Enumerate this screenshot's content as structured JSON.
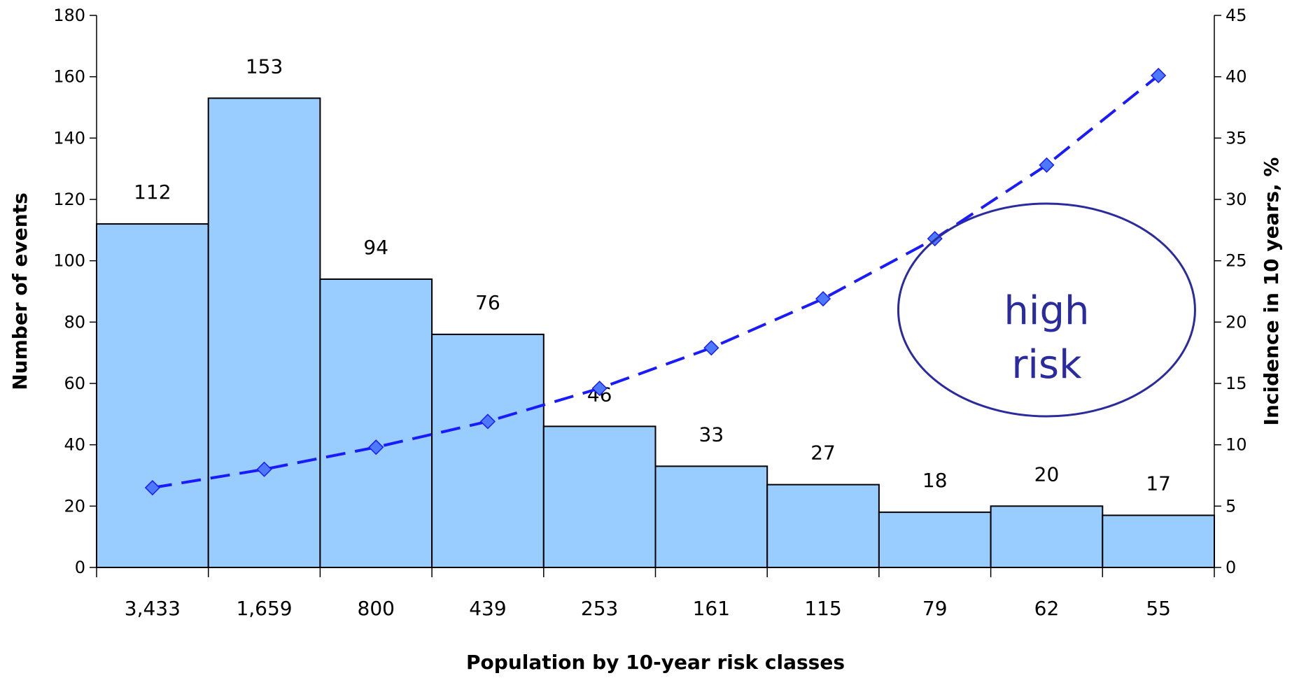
{
  "chart_data": {
    "type": "bar",
    "categories": [
      "3,433",
      "1,659",
      "800",
      "439",
      "253",
      "161",
      "115",
      "79",
      "62",
      "55"
    ],
    "series": [
      {
        "type": "bar",
        "axis": "left",
        "values": [
          112,
          153,
          94,
          76,
          46,
          33,
          27,
          18,
          20,
          17
        ],
        "data_labels": [
          "112",
          "153",
          "94",
          "76",
          "46",
          "33",
          "27",
          "18",
          "20",
          "17"
        ]
      },
      {
        "type": "line",
        "axis": "right",
        "style": "dashed",
        "marker": "diamond",
        "values": [
          6.5,
          8.0,
          9.8,
          11.9,
          14.6,
          17.9,
          21.9,
          26.8,
          32.8,
          40.1
        ]
      }
    ],
    "xlabel": "Population by 10-year risk classes",
    "ylabel": "Number of events",
    "y2label": "Incidence in 10 years, %",
    "ylim": [
      0,
      180
    ],
    "y2lim": [
      0,
      45
    ],
    "yticks": [
      0,
      20,
      40,
      60,
      80,
      100,
      120,
      140,
      160,
      180
    ],
    "y2ticks": [
      0,
      5,
      10,
      15,
      20,
      25,
      30,
      35,
      40,
      45
    ],
    "grid": false,
    "annotation": {
      "lines": [
        "high",
        "risk"
      ],
      "shape": "ellipse",
      "near_category": "62"
    },
    "colors": {
      "bar_fill": "#99ccff",
      "bar_stroke": "#000000",
      "line": "#1a1aff",
      "marker_fill": "#4d79ff",
      "annotation": "#2b2ba0"
    }
  }
}
